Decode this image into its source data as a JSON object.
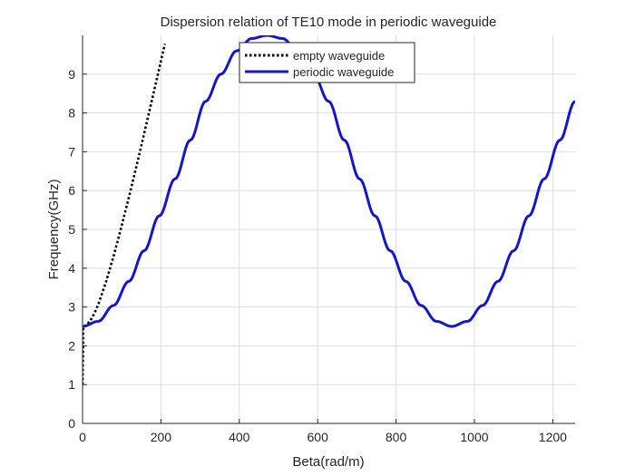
{
  "chart_data": {
    "type": "line",
    "title": "Dispersion relation of TE10 mode in periodic waveguide",
    "xlabel": "Beta(rad/m)",
    "ylabel": "Frequency(GHz)",
    "xlim": [
      0,
      1257
    ],
    "ylim": [
      0,
      10
    ],
    "xticks": [
      "0",
      "200",
      "400",
      "600",
      "800",
      "1000",
      "1200"
    ],
    "yticks": [
      "0",
      "1",
      "2",
      "3",
      "4",
      "5",
      "6",
      "7",
      "8",
      "9"
    ],
    "grid": true,
    "legend_position": "top-right",
    "series": [
      {
        "name": "empty waveguide",
        "color": "#000000",
        "style": "dotted",
        "x": [
          0,
          2,
          5,
          10,
          20,
          30,
          40,
          60,
          80,
          100,
          120,
          140,
          160,
          180,
          200,
          210
        ],
        "y": [
          1.0,
          2.5,
          2.51,
          2.54,
          2.65,
          2.83,
          3.06,
          3.65,
          4.34,
          5.1,
          5.9,
          6.73,
          7.59,
          8.46,
          9.34,
          9.78
        ]
      },
      {
        "name": "periodic waveguide",
        "color": "#1515cc",
        "style": "solid",
        "x": [
          0,
          40,
          79,
          118,
          157,
          196,
          236,
          275,
          314,
          353,
          393,
          432,
          471,
          510,
          550,
          589,
          628,
          668,
          707,
          746,
          785,
          825,
          864,
          903,
          942,
          982,
          1021,
          1060,
          1100,
          1139,
          1178,
          1218,
          1257
        ],
        "y": [
          2.5,
          2.63,
          3.04,
          3.66,
          4.45,
          5.35,
          6.3,
          7.3,
          8.3,
          9.0,
          9.6,
          9.92,
          10.0,
          9.92,
          9.6,
          9.0,
          8.3,
          7.3,
          6.3,
          5.35,
          4.45,
          3.66,
          3.04,
          2.63,
          2.5,
          2.63,
          3.04,
          3.66,
          4.45,
          5.35,
          6.3,
          7.3,
          8.3
        ]
      }
    ]
  }
}
